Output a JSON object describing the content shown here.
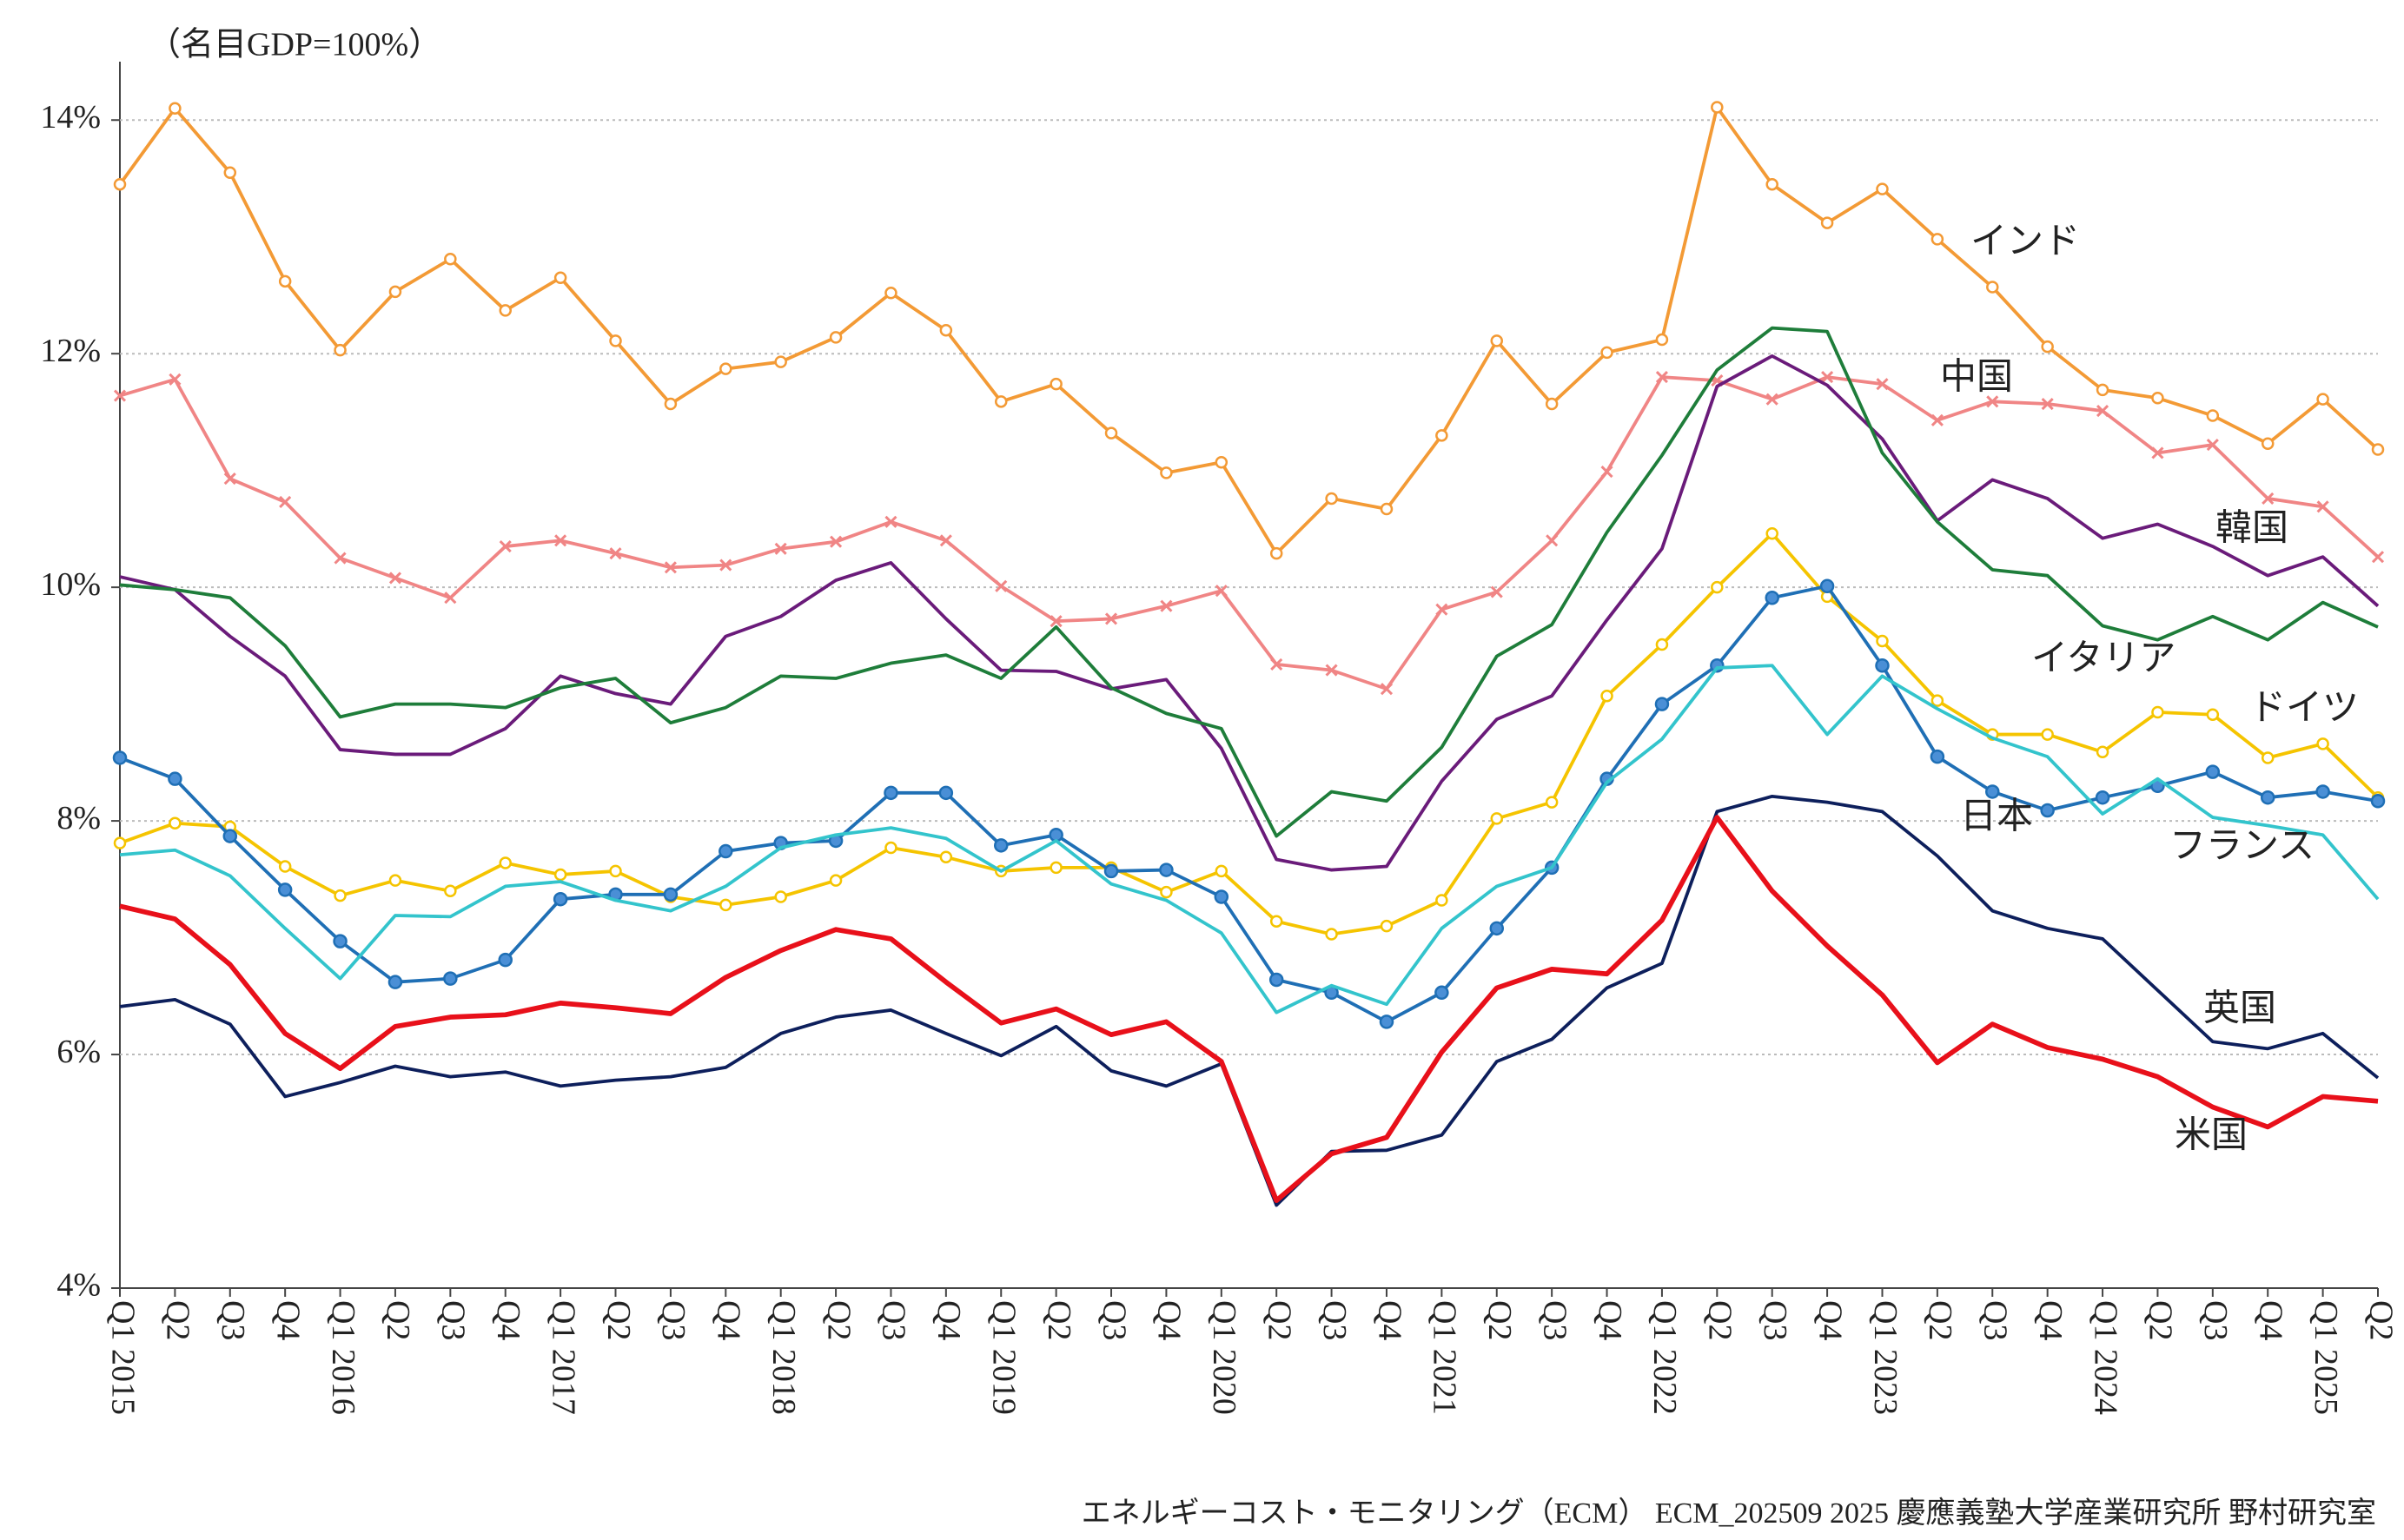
{
  "chart_data": {
    "type": "line",
    "title": "（名目GDP=100%）",
    "source": "エネルギーコスト・モニタリング（ECM） ECM_202509 2025 慶應義塾大学産業研究所 野村研究室",
    "categories": [
      "Q1 2015",
      "Q2",
      "Q3",
      "Q4",
      "Q1 2016",
      "Q2",
      "Q3",
      "Q4",
      "Q1 2017",
      "Q2",
      "Q3",
      "Q4",
      "Q1 2018",
      "Q2",
      "Q3",
      "Q4",
      "Q1 2019",
      "Q2",
      "Q3",
      "Q4",
      "Q1 2020",
      "Q2",
      "Q3",
      "Q4",
      "Q1 2021",
      "Q2",
      "Q3",
      "Q4",
      "Q1 2022",
      "Q2",
      "Q3",
      "Q4",
      "Q1 2023",
      "Q2",
      "Q3",
      "Q4",
      "Q1 2024",
      "Q2",
      "Q3",
      "Q4",
      "Q1 2025",
      "Q2"
    ],
    "ylim": [
      4,
      14.5
    ],
    "yticks": [
      {
        "value": 4,
        "label": "4%"
      },
      {
        "value": 6,
        "label": "6%"
      },
      {
        "value": 8,
        "label": "8%"
      },
      {
        "value": 10,
        "label": "10%"
      },
      {
        "value": 12,
        "label": "12%"
      },
      {
        "value": 14,
        "label": "14%"
      }
    ],
    "grid": true,
    "series": [
      {
        "name": "インド",
        "color": "#f39a35",
        "marker": "circle-open",
        "values": [
          13.45,
          14.1,
          13.55,
          12.62,
          12.03,
          12.53,
          12.81,
          12.37,
          12.65,
          12.11,
          11.57,
          11.87,
          11.93,
          12.14,
          12.52,
          12.2,
          11.59,
          11.74,
          11.32,
          10.98,
          11.07,
          10.29,
          10.76,
          10.67,
          11.3,
          12.11,
          11.57,
          12.01,
          12.12,
          14.11,
          13.45,
          13.12,
          13.41,
          12.98,
          12.57,
          12.06,
          11.69,
          11.62,
          11.47,
          11.23,
          11.61,
          11.18
        ]
      },
      {
        "name": "中国",
        "color": "#f08585",
        "marker": "x",
        "values": [
          11.64,
          11.78,
          10.93,
          10.73,
          10.25,
          10.08,
          9.91,
          10.35,
          10.4,
          10.29,
          10.17,
          10.19,
          10.33,
          10.39,
          10.56,
          10.4,
          10.01,
          9.71,
          9.73,
          9.84,
          9.97,
          9.34,
          9.29,
          9.13,
          9.81,
          9.96,
          10.4,
          10.99,
          11.8,
          11.77,
          11.61,
          11.8,
          11.74,
          11.43,
          11.59,
          11.57,
          11.51,
          11.15,
          11.22,
          10.76,
          10.69,
          10.26
        ]
      },
      {
        "name": "韓国",
        "color": "#6a1b7a",
        "marker": "none",
        "values": [
          10.09,
          9.98,
          9.58,
          9.24,
          8.61,
          8.57,
          8.57,
          8.79,
          9.24,
          9.09,
          9.0,
          9.58,
          9.75,
          10.06,
          10.21,
          9.73,
          9.29,
          9.28,
          9.13,
          9.21,
          8.62,
          7.67,
          7.58,
          7.61,
          8.34,
          8.87,
          9.07,
          9.72,
          10.33,
          11.72,
          11.98,
          11.73,
          11.27,
          10.57,
          10.92,
          10.76,
          10.42,
          10.54,
          10.35,
          10.1,
          10.26,
          9.84
        ]
      },
      {
        "name": "イタリア",
        "color": "#1e7d3a",
        "marker": "none",
        "values": [
          10.02,
          9.98,
          9.91,
          9.5,
          8.89,
          9.0,
          9.0,
          8.97,
          9.14,
          9.22,
          8.84,
          8.97,
          9.24,
          9.22,
          9.35,
          9.42,
          9.22,
          9.66,
          9.14,
          8.92,
          8.79,
          7.87,
          8.25,
          8.17,
          8.63,
          9.41,
          9.68,
          10.47,
          11.13,
          11.86,
          12.22,
          12.19,
          11.15,
          10.56,
          10.15,
          10.1,
          9.67,
          9.55,
          9.75,
          9.55,
          9.87,
          9.66
        ]
      },
      {
        "name": "ドイツ",
        "color": "#f5c400",
        "marker": "circle-open",
        "values": [
          7.81,
          7.98,
          7.95,
          7.61,
          7.36,
          7.49,
          7.4,
          7.64,
          7.54,
          7.57,
          7.35,
          7.28,
          7.35,
          7.49,
          7.77,
          7.69,
          7.57,
          7.6,
          7.6,
          7.39,
          7.57,
          7.14,
          7.03,
          7.1,
          7.32,
          8.02,
          8.16,
          9.07,
          9.51,
          10.0,
          10.46,
          9.92,
          9.54,
          9.03,
          8.74,
          8.74,
          8.59,
          8.93,
          8.91,
          8.54,
          8.66,
          8.2
        ]
      },
      {
        "name": "日本",
        "color": "#1f6fb5",
        "marker": "circle",
        "values": [
          8.54,
          8.36,
          7.87,
          7.41,
          6.97,
          6.62,
          6.65,
          6.81,
          7.33,
          7.37,
          7.37,
          7.74,
          7.81,
          7.83,
          8.24,
          8.24,
          7.79,
          7.88,
          7.57,
          7.58,
          7.35,
          6.64,
          6.53,
          6.28,
          6.53,
          7.08,
          7.6,
          8.36,
          9.0,
          9.33,
          9.91,
          10.01,
          9.33,
          8.55,
          8.25,
          8.09,
          8.2,
          8.3,
          8.42,
          8.2,
          8.25,
          8.17
        ]
      },
      {
        "name": "フランス",
        "color": "#33c4cc",
        "marker": "none",
        "values": [
          7.71,
          7.75,
          7.53,
          7.08,
          6.65,
          7.19,
          7.18,
          7.44,
          7.48,
          7.32,
          7.23,
          7.44,
          7.77,
          7.88,
          7.94,
          7.85,
          7.57,
          7.83,
          7.46,
          7.32,
          7.04,
          6.36,
          6.59,
          6.43,
          7.08,
          7.44,
          7.6,
          8.33,
          8.7,
          9.31,
          9.33,
          8.74,
          9.24,
          8.96,
          8.71,
          8.55,
          8.06,
          8.36,
          8.03,
          7.96,
          7.88,
          7.33
        ]
      },
      {
        "name": "英国",
        "color": "#0d1f5c",
        "marker": "none",
        "values": [
          6.41,
          6.47,
          6.26,
          5.64,
          5.76,
          5.9,
          5.81,
          5.85,
          5.73,
          5.78,
          5.81,
          5.89,
          6.18,
          6.32,
          6.38,
          6.18,
          5.99,
          6.24,
          5.86,
          5.73,
          5.92,
          4.71,
          5.17,
          5.18,
          5.31,
          5.94,
          6.13,
          6.57,
          6.78,
          8.08,
          8.21,
          8.16,
          8.08,
          7.7,
          7.23,
          7.08,
          6.99,
          6.55,
          6.11,
          6.05,
          6.18,
          5.8
        ]
      },
      {
        "name": "米国",
        "color": "#e8101a",
        "marker": "none",
        "width": 3,
        "values": [
          7.27,
          7.16,
          6.77,
          6.18,
          5.88,
          6.24,
          6.32,
          6.34,
          6.44,
          6.4,
          6.35,
          6.66,
          6.89,
          7.07,
          6.99,
          6.62,
          6.27,
          6.39,
          6.17,
          6.28,
          5.94,
          4.75,
          5.15,
          5.29,
          6.02,
          6.57,
          6.73,
          6.69,
          7.15,
          8.03,
          7.4,
          6.93,
          6.51,
          5.93,
          6.26,
          6.06,
          5.96,
          5.81,
          5.55,
          5.38,
          5.64,
          5.6
        ]
      }
    ]
  }
}
